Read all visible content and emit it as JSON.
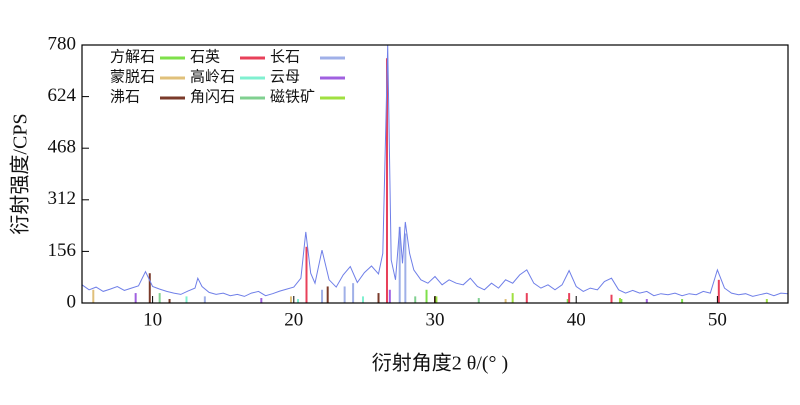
{
  "chart_data": {
    "type": "line",
    "x_label": "衍射角度2 θ/(° )",
    "y_label": "衍射强度/CPS",
    "xlim": [
      5,
      55
    ],
    "ylim": [
      0,
      780
    ],
    "xticks": [
      10,
      20,
      30,
      40,
      50
    ],
    "yticks": [
      0,
      156,
      312,
      468,
      624,
      780
    ],
    "series": [
      {
        "color": "#6f7fe8",
        "x": [
          5,
          5.5,
          6,
          6.5,
          7,
          7.5,
          8,
          8.5,
          9,
          9.5,
          10,
          10.5,
          11,
          11.5,
          12,
          12.5,
          13,
          13.2,
          13.5,
          14,
          14.5,
          15,
          15.5,
          16,
          16.5,
          17,
          17.5,
          18,
          18.5,
          19,
          19.5,
          20,
          20.5,
          20.85,
          21.2,
          21.5,
          22,
          22.5,
          23,
          23.5,
          24,
          24.5,
          25,
          25.5,
          26,
          26.3,
          26.65,
          26.9,
          27.2,
          27.5,
          27.7,
          27.9,
          28.2,
          28.5,
          29,
          29.5,
          30,
          30.5,
          31,
          31.5,
          32,
          32.5,
          33,
          33.5,
          34,
          34.5,
          35,
          35.5,
          36,
          36.5,
          37,
          37.5,
          38,
          38.5,
          39,
          39.5,
          40,
          40.5,
          41,
          41.5,
          42,
          42.5,
          43,
          43.5,
          44,
          44.5,
          45,
          45.5,
          46,
          46.5,
          47,
          47.5,
          48,
          48.5,
          49,
          49.5,
          50,
          50.5,
          51,
          51.5,
          52,
          52.5,
          53,
          53.5,
          54,
          54.5,
          55
        ],
        "values": [
          55,
          40,
          48,
          35,
          42,
          50,
          38,
          45,
          52,
          95,
          50,
          42,
          35,
          30,
          26,
          36,
          45,
          75,
          50,
          32,
          26,
          30,
          22,
          26,
          20,
          30,
          35,
          22,
          28,
          36,
          42,
          48,
          75,
          215,
          90,
          60,
          160,
          70,
          48,
          85,
          110,
          62,
          92,
          112,
          88,
          150,
          780,
          130,
          70,
          230,
          120,
          245,
          150,
          100,
          70,
          60,
          80,
          55,
          70,
          60,
          55,
          75,
          50,
          40,
          60,
          45,
          70,
          60,
          85,
          100,
          60,
          45,
          55,
          40,
          55,
          98,
          50,
          35,
          45,
          40,
          65,
          75,
          40,
          30,
          38,
          30,
          35,
          22,
          28,
          25,
          30,
          22,
          28,
          25,
          35,
          30,
          100,
          45,
          30,
          25,
          28,
          20,
          25,
          30,
          22,
          30,
          28
        ]
      }
    ],
    "sticks": [
      {
        "name": "方解石",
        "color": "#7ee04a",
        "x": [
          29.4,
          39.4,
          43.2,
          47.5
        ],
        "values": [
          40,
          12,
          12,
          12
        ]
      },
      {
        "name": "蒙脱石",
        "color": "#e0c07a",
        "x": [
          5.8,
          19.8,
          35
        ],
        "values": [
          40,
          20,
          12
        ]
      },
      {
        "name": "沸石",
        "color": "#7a3a2a",
        "x": [
          9.8,
          11.2,
          22.4,
          26,
          30
        ],
        "values": [
          90,
          12,
          50,
          30,
          20
        ]
      },
      {
        "name": "石英",
        "color": "#e8405a",
        "x": [
          20.9,
          26.6,
          36.5,
          39.5,
          42.5,
          50.1
        ],
        "values": [
          170,
          740,
          30,
          30,
          25,
          70
        ]
      },
      {
        "name": "高岭石",
        "color": "#80f0d0",
        "x": [
          12.4,
          20.3,
          24.9
        ],
        "values": [
          20,
          12,
          20
        ]
      },
      {
        "name": "角闪石",
        "color": "#80d090",
        "x": [
          10.5,
          28.6,
          33.1
        ],
        "values": [
          30,
          20,
          15
        ]
      },
      {
        "name": "长石",
        "color": "#a0b0e8",
        "x": [
          13.7,
          22,
          23.6,
          24.2,
          27.5,
          27.9
        ],
        "values": [
          20,
          40,
          50,
          60,
          230,
          210
        ]
      },
      {
        "name": "云母",
        "color": "#a060e0",
        "x": [
          8.8,
          17.7,
          26.8,
          45
        ],
        "values": [
          30,
          15,
          40,
          12
        ]
      },
      {
        "name": "磁铁矿",
        "color": "#a0e040",
        "x": [
          30.1,
          35.5,
          43.1,
          53.5
        ],
        "values": [
          20,
          30,
          15,
          12
        ]
      }
    ]
  }
}
